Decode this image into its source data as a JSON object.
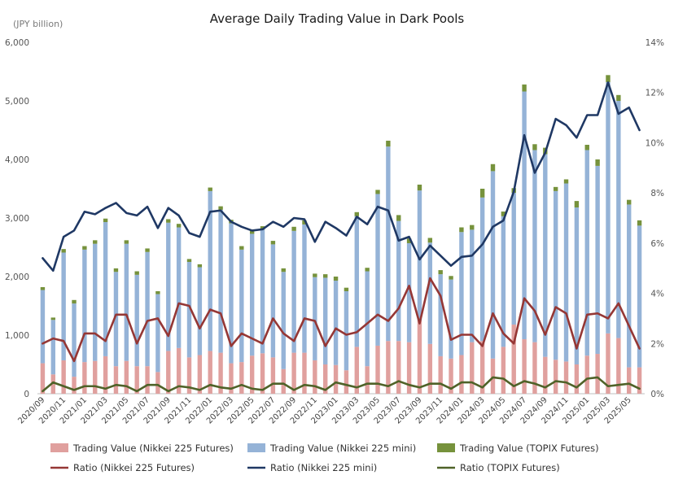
{
  "chart_data": {
    "type": "bar",
    "subtype": "stacked-bar-with-secondary-lines",
    "title": "Average Daily Trading Value in Dark Pools",
    "ylabel": "(JPY billion)",
    "ylim": [
      0,
      6000
    ],
    "y_ticks": [
      "0",
      "1,000",
      "2,000",
      "3,000",
      "4,000",
      "5,000",
      "6,000"
    ],
    "y2lim": [
      0,
      14
    ],
    "y2_ticks": [
      "0%",
      "2%",
      "4%",
      "6%",
      "8%",
      "10%",
      "12%",
      "14%"
    ],
    "grid": false,
    "legend_position": "bottom",
    "x_tick_labels": [
      "2020/09",
      "2020/11",
      "2021/01",
      "2021/03",
      "2021/05",
      "2021/07",
      "2021/09",
      "2021/11",
      "2022/01",
      "2022/03",
      "2022/05",
      "2022/07",
      "2022/09",
      "2022/11",
      "2023/01",
      "2023/03",
      "2023/05",
      "2023/07",
      "2023/09",
      "2023/11",
      "2024/01",
      "2024/03",
      "2024/05",
      "2024/07",
      "2024/09",
      "2024/11",
      "2025/01",
      "2025/03",
      "2025/05"
    ],
    "categories": [
      "2020/09",
      "2020/10",
      "2020/11",
      "2020/12",
      "2021/01",
      "2021/02",
      "2021/03",
      "2021/04",
      "2021/05",
      "2021/06",
      "2021/07",
      "2021/08",
      "2021/09",
      "2021/10",
      "2021/11",
      "2021/12",
      "2022/01",
      "2022/02",
      "2022/03",
      "2022/04",
      "2022/05",
      "2022/06",
      "2022/07",
      "2022/08",
      "2022/09",
      "2022/10",
      "2022/11",
      "2022/12",
      "2023/01",
      "2023/02",
      "2023/03",
      "2023/04",
      "2023/05",
      "2023/06",
      "2023/07",
      "2023/08",
      "2023/09",
      "2023/10",
      "2023/11",
      "2023/12",
      "2024/01",
      "2024/02",
      "2024/03",
      "2024/04",
      "2024/05",
      "2024/06",
      "2024/07",
      "2024/08",
      "2024/09",
      "2024/10",
      "2024/11",
      "2024/12",
      "2025/01",
      "2025/02",
      "2025/03",
      "2025/04",
      "2025/05",
      "2025/06"
    ],
    "bar_series": [
      {
        "name": "Trading Value (Nikkei 225 Futures)",
        "color": "#e0a09e",
        "values": [
          520,
          330,
          570,
          290,
          540,
          560,
          640,
          470,
          560,
          470,
          470,
          370,
          730,
          780,
          620,
          660,
          730,
          700,
          520,
          540,
          650,
          690,
          620,
          420,
          700,
          700,
          570,
          500,
          490,
          400,
          800,
          470,
          820,
          900,
          900,
          880,
          1250,
          850,
          640,
          600,
          660,
          880,
          900,
          600,
          800,
          1180,
          930,
          880,
          630,
          580,
          550,
          500,
          650,
          680,
          1030,
          950,
          450,
          450
        ]
      },
      {
        "name": "Trading Value (Nikkei 225 mini)",
        "color": "#95b3d7",
        "values": [
          1250,
          930,
          1840,
          1250,
          1920,
          2000,
          2290,
          1610,
          2000,
          1560,
          1950,
          1330,
          2190,
          2060,
          1630,
          1500,
          2730,
          2440,
          2390,
          1920,
          2080,
          2110,
          1930,
          1660,
          2080,
          2190,
          1420,
          1480,
          1440,
          1350,
          2230,
          1620,
          2590,
          3320,
          2050,
          1690,
          2220,
          1730,
          1400,
          1350,
          2100,
          1920,
          2450,
          3200,
          2230,
          2250,
          4230,
          3280,
          3460,
          2880,
          3040,
          2680,
          3510,
          3210,
          4290,
          4050,
          2780,
          2420
        ]
      },
      {
        "name": "Trading Value (TOPIX Futures)",
        "color": "#76923c",
        "values": [
          50,
          40,
          60,
          60,
          60,
          60,
          60,
          60,
          60,
          60,
          60,
          50,
          60,
          60,
          50,
          50,
          60,
          60,
          60,
          60,
          60,
          60,
          60,
          60,
          70,
          70,
          60,
          60,
          70,
          60,
          70,
          60,
          70,
          100,
          100,
          80,
          100,
          80,
          70,
          60,
          80,
          80,
          150,
          120,
          80,
          80,
          120,
          100,
          110,
          70,
          70,
          110,
          90,
          110,
          120,
          100,
          80,
          90
        ]
      }
    ],
    "line_series": [
      {
        "name": "Ratio (Nikkei 225 Futures)",
        "color": "#953735",
        "axis": "secondary",
        "values": [
          2.0,
          2.2,
          2.1,
          1.3,
          2.4,
          2.4,
          2.1,
          3.15,
          3.15,
          2.0,
          2.9,
          3.0,
          2.3,
          3.6,
          3.5,
          2.6,
          3.35,
          3.2,
          1.9,
          2.4,
          2.2,
          2.0,
          3.0,
          2.4,
          2.1,
          3.0,
          2.9,
          1.9,
          2.6,
          2.35,
          2.45,
          2.8,
          3.15,
          2.9,
          3.4,
          4.3,
          2.8,
          4.6,
          3.9,
          2.15,
          2.35,
          2.35,
          1.9,
          3.2,
          2.4,
          2.0,
          3.8,
          3.3,
          2.35,
          3.45,
          3.2,
          1.8,
          3.15,
          3.2,
          3.0,
          3.6,
          2.7,
          1.8
        ]
      },
      {
        "name": "Ratio (Nikkei 225 mini)",
        "color": "#1f3864",
        "axis": "secondary",
        "values": [
          5.4,
          4.9,
          6.25,
          6.5,
          7.25,
          7.15,
          7.4,
          7.6,
          7.2,
          7.1,
          7.45,
          6.6,
          7.4,
          7.1,
          6.4,
          6.25,
          7.25,
          7.3,
          6.85,
          6.65,
          6.5,
          6.55,
          6.85,
          6.65,
          7.0,
          6.95,
          6.05,
          6.85,
          6.6,
          6.3,
          7.05,
          6.75,
          7.45,
          7.3,
          6.1,
          6.25,
          5.35,
          5.9,
          5.5,
          5.1,
          5.45,
          5.5,
          5.95,
          6.65,
          6.9,
          8.05,
          10.3,
          8.8,
          9.6,
          10.95,
          10.7,
          10.2,
          11.1,
          11.1,
          12.4,
          11.15,
          11.4,
          10.5
        ]
      },
      {
        "name": "Ratio (TOPIX Futures)",
        "color": "#4f6228",
        "axis": "secondary",
        "values": [
          0.1,
          0.45,
          0.3,
          0.15,
          0.3,
          0.3,
          0.2,
          0.35,
          0.3,
          0.1,
          0.35,
          0.35,
          0.1,
          0.3,
          0.25,
          0.15,
          0.35,
          0.25,
          0.2,
          0.35,
          0.2,
          0.15,
          0.4,
          0.4,
          0.15,
          0.35,
          0.3,
          0.15,
          0.45,
          0.35,
          0.25,
          0.4,
          0.4,
          0.3,
          0.5,
          0.35,
          0.25,
          0.4,
          0.4,
          0.2,
          0.45,
          0.45,
          0.25,
          0.65,
          0.6,
          0.3,
          0.5,
          0.4,
          0.25,
          0.5,
          0.45,
          0.25,
          0.6,
          0.65,
          0.3,
          0.35,
          0.4,
          0.2
        ]
      }
    ]
  }
}
